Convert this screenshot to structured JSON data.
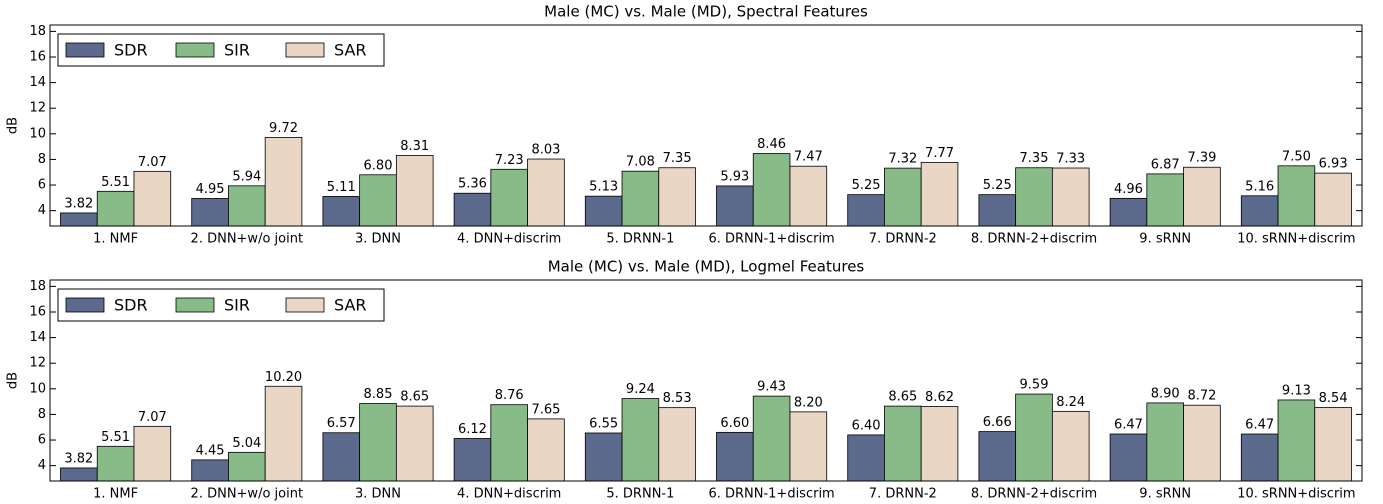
{
  "chart_data": [
    {
      "type": "bar",
      "title": "Male (MC) vs. Male (MD), Spectral Features",
      "ylabel": "dB",
      "categories": [
        "1. NMF",
        "2. DNN+w/o joint",
        "3. DNN",
        "4. DNN+discrim",
        "5. DRNN-1",
        "6. DRNN-1+discrim",
        "7. DRNN-2",
        "8. DRNN-2+discrim",
        "9. sRNN",
        "10. sRNN+discrim"
      ],
      "series": [
        {
          "name": "SDR",
          "color": "#5b6a8d",
          "values": [
            3.82,
            4.95,
            5.11,
            5.36,
            5.13,
            5.93,
            5.25,
            5.25,
            4.96,
            5.16
          ],
          "value_labels": [
            "3.82",
            "4.95",
            "5.11",
            "5.36",
            "5.13",
            "5.93",
            "5.25",
            "5.25",
            "4.96",
            "5.16"
          ]
        },
        {
          "name": "SIR",
          "color": "#88bb88",
          "values": [
            5.51,
            5.94,
            6.8,
            7.23,
            7.08,
            8.46,
            7.32,
            7.35,
            6.87,
            7.5
          ],
          "value_labels": [
            "5.51",
            "5.94",
            "6.80",
            "7.23",
            "7.08",
            "8.46",
            "7.32",
            "7.35",
            "6.87",
            "7.50"
          ]
        },
        {
          "name": "SAR",
          "color": "#e9d6c4",
          "values": [
            7.07,
            9.72,
            8.31,
            8.03,
            7.35,
            7.47,
            7.77,
            7.33,
            7.39,
            6.93
          ],
          "value_labels": [
            "7.07",
            "9.72",
            "8.31",
            "8.03",
            "7.35",
            "7.47",
            "7.77",
            "7.33",
            "7.39",
            "6.93"
          ]
        }
      ],
      "ylim": [
        2.8,
        18.5
      ],
      "yticks": [
        4,
        6,
        8,
        10,
        12,
        14,
        16,
        18
      ],
      "legend": "upper left",
      "grid": false
    },
    {
      "type": "bar",
      "title": "Male (MC) vs. Male (MD), Logmel Features",
      "ylabel": "dB",
      "categories": [
        "1. NMF",
        "2. DNN+w/o joint",
        "3. DNN",
        "4. DNN+discrim",
        "5. DRNN-1",
        "6. DRNN-1+discrim",
        "7. DRNN-2",
        "8. DRNN-2+discrim",
        "9. sRNN",
        "10. sRNN+discrim"
      ],
      "series": [
        {
          "name": "SDR",
          "color": "#5b6a8d",
          "values": [
            3.82,
            4.45,
            6.57,
            6.12,
            6.55,
            6.6,
            6.4,
            6.66,
            6.47,
            6.47
          ],
          "value_labels": [
            "3.82",
            "4.45",
            "6.57",
            "6.12",
            "6.55",
            "6.60",
            "6.40",
            "6.66",
            "6.47",
            "6.47"
          ]
        },
        {
          "name": "SIR",
          "color": "#88bb88",
          "values": [
            5.51,
            5.04,
            8.85,
            8.76,
            9.24,
            9.43,
            8.65,
            9.59,
            8.9,
            9.13
          ],
          "value_labels": [
            "5.51",
            "5.04",
            "8.85",
            "8.76",
            "9.24",
            "9.43",
            "8.65",
            "9.59",
            "8.90",
            "9.13"
          ]
        },
        {
          "name": "SAR",
          "color": "#e9d6c4",
          "values": [
            7.07,
            10.2,
            8.65,
            7.65,
            8.53,
            8.2,
            8.62,
            8.24,
            8.72,
            8.54
          ],
          "value_labels": [
            "7.07",
            "10.20",
            "8.65",
            "7.65",
            "8.53",
            "8.20",
            "8.62",
            "8.24",
            "8.72",
            "8.54"
          ]
        }
      ],
      "ylim": [
        2.8,
        18.5
      ],
      "yticks": [
        4,
        6,
        8,
        10,
        12,
        14,
        16,
        18
      ],
      "legend": "upper left",
      "grid": false
    }
  ]
}
